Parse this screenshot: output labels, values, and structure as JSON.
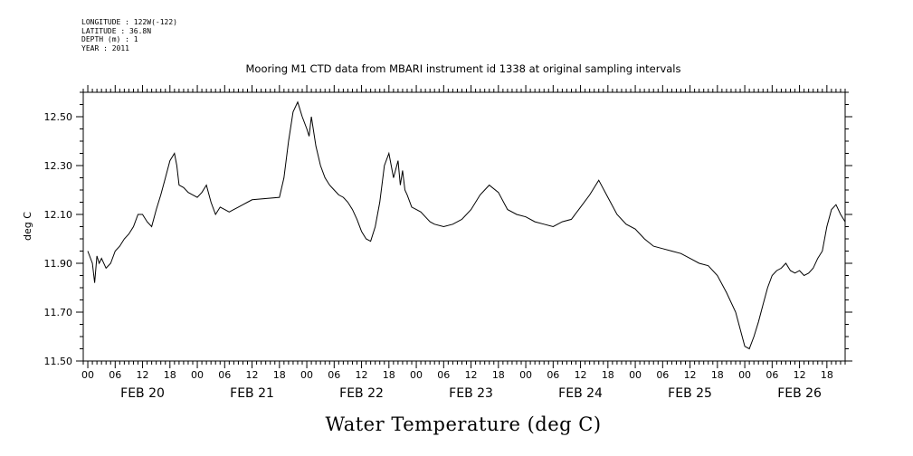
{
  "meta": {
    "longitude": "LONGITUDE : 122W(-122)",
    "latitude": "LATITUDE : 36.8N",
    "depth": "DEPTH (m) : 1",
    "year": "YEAR : 2011"
  },
  "chart_data": {
    "type": "line",
    "title": "Mooring M1 CTD data from MBARI instrument id 1338 at original sampling intervals",
    "ylabel": "deg C",
    "xlabel": "Water Temperature (deg C)",
    "ylim": [
      11.5,
      12.6
    ],
    "xlim_hours": [
      -1,
      166
    ],
    "yticks": [
      11.5,
      11.7,
      11.9,
      12.1,
      12.3,
      12.5
    ],
    "ytick_labels": [
      "11.50",
      "11.70",
      "11.90",
      "12.10",
      "12.30",
      "12.50"
    ],
    "hour_tick_labels": [
      "00",
      "06",
      "12",
      "18",
      "00",
      "06",
      "12",
      "18",
      "00",
      "06",
      "12",
      "18",
      "00",
      "06",
      "12",
      "18",
      "00",
      "06",
      "12",
      "18",
      "00",
      "06",
      "12",
      "18",
      "00",
      "06",
      "12",
      "18"
    ],
    "day_labels": [
      "FEB 20",
      "FEB 21",
      "FEB 22",
      "FEB 23",
      "FEB 24",
      "FEB 25",
      "FEB 26"
    ],
    "series": [
      {
        "hours": [
          0,
          1,
          1.5,
          2,
          2.5,
          3,
          4,
          5,
          6,
          7,
          8,
          9,
          10,
          11,
          12,
          13,
          14,
          15,
          16,
          17,
          18,
          19,
          19.5,
          20,
          21,
          22,
          23,
          24,
          25,
          26,
          27,
          28,
          29,
          30,
          31,
          32,
          33,
          34,
          35,
          36,
          42,
          43,
          44,
          45,
          46,
          47,
          48,
          48.5,
          49,
          50,
          51,
          52,
          53,
          54,
          55,
          56,
          57,
          58,
          59,
          60,
          61,
          62,
          63,
          64,
          65,
          66,
          67,
          68,
          68.5,
          69,
          69.5,
          70,
          71,
          72,
          73,
          74,
          75,
          76,
          78,
          80,
          82,
          84,
          86,
          88,
          90,
          92,
          94,
          96,
          98,
          100,
          102,
          104,
          106,
          108,
          110,
          112,
          114,
          116,
          118,
          120,
          122,
          124,
          126,
          128,
          130,
          132,
          134,
          136,
          138,
          140,
          142,
          144,
          145,
          146,
          147,
          148,
          149,
          150,
          151,
          152,
          153,
          154,
          155,
          156,
          157,
          158,
          159,
          160,
          161,
          162,
          163,
          164,
          165,
          166
        ],
        "values": [
          11.95,
          11.9,
          11.82,
          11.93,
          11.9,
          11.92,
          11.88,
          11.9,
          11.95,
          11.97,
          12.0,
          12.02,
          12.05,
          12.1,
          12.1,
          12.07,
          12.05,
          12.12,
          12.18,
          12.25,
          12.32,
          12.35,
          12.3,
          12.22,
          12.21,
          12.19,
          12.18,
          12.17,
          12.19,
          12.22,
          12.15,
          12.1,
          12.13,
          12.12,
          12.11,
          12.12,
          12.13,
          12.14,
          12.15,
          12.16,
          12.17,
          12.25,
          12.4,
          12.52,
          12.56,
          12.5,
          12.45,
          12.42,
          12.5,
          12.38,
          12.3,
          12.25,
          12.22,
          12.2,
          12.18,
          12.17,
          12.15,
          12.12,
          12.08,
          12.03,
          12.0,
          11.99,
          12.05,
          12.15,
          12.3,
          12.35,
          12.25,
          12.32,
          12.22,
          12.28,
          12.2,
          12.18,
          12.13,
          12.12,
          12.11,
          12.09,
          12.07,
          12.06,
          12.05,
          12.06,
          12.08,
          12.12,
          12.18,
          12.22,
          12.19,
          12.12,
          12.1,
          12.09,
          12.07,
          12.06,
          12.05,
          12.07,
          12.08,
          12.13,
          12.18,
          12.24,
          12.17,
          12.1,
          12.06,
          12.04,
          12.0,
          11.97,
          11.96,
          11.95,
          11.94,
          11.92,
          11.9,
          11.89,
          11.85,
          11.78,
          11.7,
          11.56,
          11.55,
          11.6,
          11.66,
          11.73,
          11.8,
          11.85,
          11.87,
          11.88,
          11.9,
          11.87,
          11.86,
          11.87,
          11.85,
          11.86,
          11.88,
          11.92,
          11.95,
          12.05,
          12.12,
          12.14,
          12.1,
          12.07
        ]
      }
    ]
  }
}
